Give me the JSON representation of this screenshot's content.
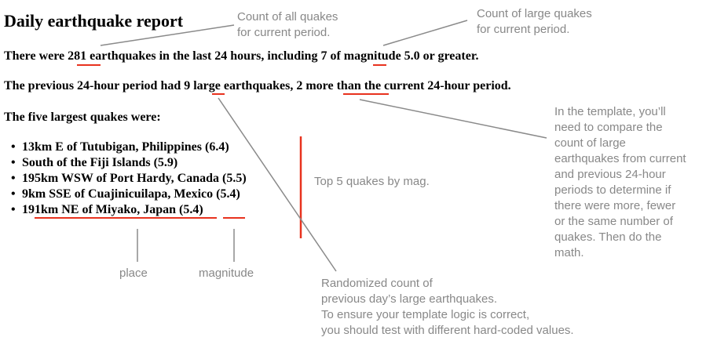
{
  "report": {
    "title": "Daily earthquake report",
    "line1": {
      "pre": "There were ",
      "total_count": "281",
      "mid": " earthquakes in the last 24 hours, including ",
      "large_count": "7",
      "post": " of magnitude 5.0 or greater."
    },
    "line2": {
      "pre": "The previous 24-hour period had ",
      "prev_count": "9",
      "mid": " large earthquakes, ",
      "difference": "2 more",
      "post": " than the current 24-hour period."
    },
    "list_heading": "The five largest quakes were:",
    "quakes": [
      {
        "place": "13km E of Tutubigan, Philippines",
        "magnitude": "6.4"
      },
      {
        "place": "South of the Fiji Islands",
        "magnitude": "5.9"
      },
      {
        "place": "195km WSW of Port Hardy, Canada",
        "magnitude": "5.5"
      },
      {
        "place": "9km SSE of Cuajinicuilapa, Mexico",
        "magnitude": "5.4"
      },
      {
        "place": "191km NE of Miyako, Japan",
        "magnitude": "5.4"
      }
    ]
  },
  "annotations": {
    "count_all": [
      "Count of all quakes",
      "for current period."
    ],
    "count_large": [
      "Count of large quakes",
      "for current period."
    ],
    "compare_note": [
      "In the template, you’ll",
      "need to compare the",
      "count of large",
      "earthquakes from current",
      "and previous 24-hour",
      "periods to determine if",
      "there were more, fewer",
      "or the same number of",
      "quakes. Then do the",
      "math."
    ],
    "top5": "Top 5 quakes by mag.",
    "place": "place",
    "magnitude": "magnitude",
    "randomized": [
      "Randomized count of",
      "previous day’s large earthquakes.",
      "To ensure your template logic is correct,",
      "you should test with different hard-coded values."
    ]
  },
  "colors": {
    "underline": "#e8321e",
    "pointer": "#8a8a8a",
    "note_text": "#888888"
  }
}
